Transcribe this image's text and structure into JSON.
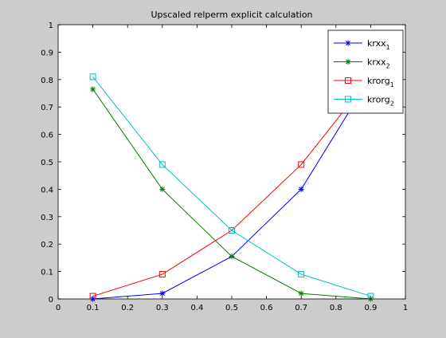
{
  "chart_data": {
    "type": "line",
    "title": "Upscaled relperm explicit calculation",
    "xlabel": "",
    "ylabel": "",
    "xlim": [
      0,
      1
    ],
    "ylim": [
      0,
      1
    ],
    "xticks": [
      "0",
      "0.1",
      "0.2",
      "0.3",
      "0.4",
      "0.5",
      "0.6",
      "0.7",
      "0.8",
      "0.9",
      "1"
    ],
    "yticks": [
      "0",
      "0.1",
      "0.2",
      "0.3",
      "0.4",
      "0.5",
      "0.6",
      "0.7",
      "0.8",
      "0.9",
      "1"
    ],
    "grid": false,
    "legend_position": "top-right",
    "x": [
      0.1,
      0.3,
      0.5,
      0.7,
      0.9
    ],
    "series": [
      {
        "name": "krxx",
        "subscript": "1",
        "color": "#0000ff",
        "marker": "star",
        "values": [
          0.0,
          0.02,
          0.155,
          0.4,
          0.81
        ]
      },
      {
        "name": "krxx",
        "subscript": "2",
        "color": "#008000",
        "marker": "star",
        "values": [
          0.765,
          0.4,
          0.155,
          0.02,
          0.0
        ]
      },
      {
        "name": "krorg",
        "subscript": "1",
        "color": "#ff0000",
        "marker": "square",
        "values": [
          0.01,
          0.09,
          0.25,
          0.49,
          0.81
        ]
      },
      {
        "name": "krorg",
        "subscript": "2",
        "color": "#00bfbf",
        "marker": "square",
        "values": [
          0.81,
          0.49,
          0.25,
          0.09,
          0.01
        ]
      }
    ]
  }
}
